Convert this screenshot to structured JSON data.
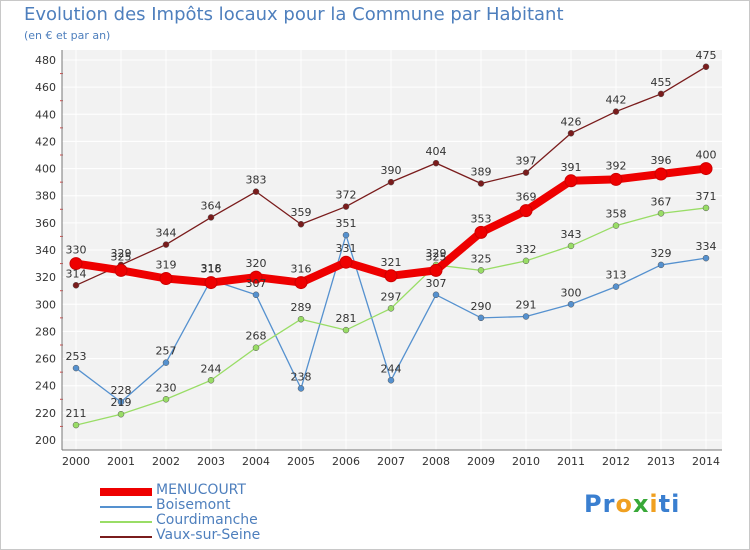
{
  "page": {
    "title": "Evolution des Impôts locaux pour la Commune par Habitant",
    "subtitle": "(en € et par an)",
    "logo": {
      "parts": [
        "Pr",
        "o",
        "x",
        "i",
        "ti"
      ],
      "colors": [
        "#3a7fd0",
        "#f0a020",
        "#38a838",
        "#f0a020",
        "#3a7fd0"
      ]
    }
  },
  "chart_data": {
    "type": "line",
    "title": "Evolution des Impôts locaux pour la Commune par Habitant",
    "subtitle": "(en € et par an)",
    "x": [
      2000,
      2001,
      2002,
      2003,
      2004,
      2005,
      2006,
      2007,
      2008,
      2009,
      2010,
      2011,
      2012,
      2013,
      2014
    ],
    "ylim": [
      200,
      480
    ],
    "yticks": [
      200,
      220,
      240,
      260,
      280,
      300,
      320,
      340,
      360,
      380,
      400,
      420,
      440,
      460,
      480
    ],
    "grid": true,
    "legend_position": "bottom-left",
    "series": [
      {
        "name": "MENUCOURT",
        "color": "#ee0000",
        "emphasis": true,
        "values": [
          330,
          325,
          319,
          316,
          320,
          316,
          331,
          321,
          325,
          353,
          369,
          391,
          392,
          396,
          400
        ],
        "labels": [
          "330",
          "325",
          "319",
          "316",
          "320",
          "316",
          "331",
          "321",
          "325",
          "353",
          "369",
          "391",
          "392",
          "396",
          "400"
        ]
      },
      {
        "name": "Boisemont",
        "color": "#5591cf",
        "emphasis": false,
        "values": [
          253,
          228,
          257,
          318,
          307,
          238,
          351,
          244,
          307,
          290,
          291,
          300,
          313,
          329,
          334
        ],
        "labels": [
          "253",
          "228",
          "257",
          "318",
          "307",
          "238",
          "351",
          "244",
          "307",
          "290",
          "291",
          "300",
          "313",
          "329",
          "334"
        ]
      },
      {
        "name": "Courdimanche",
        "color": "#99dd66",
        "emphasis": false,
        "values": [
          211,
          219,
          230,
          244,
          268,
          289,
          281,
          297,
          329,
          325,
          332,
          343,
          358,
          367,
          371
        ],
        "labels": [
          "211",
          "219",
          "230",
          "244",
          "268",
          "289",
          "281",
          "297",
          "329",
          "325",
          "332",
          "343",
          "358",
          "367",
          "371"
        ]
      },
      {
        "name": "Vaux-sur-Seine",
        "color": "#7a1c1c",
        "emphasis": false,
        "values": [
          314,
          329,
          344,
          364,
          383,
          359,
          372,
          390,
          404,
          389,
          397,
          426,
          442,
          455,
          475
        ],
        "labels": [
          "314",
          "329",
          "344",
          "364",
          "383",
          "359",
          "372",
          "390",
          "404",
          "389",
          "397",
          "426",
          "442",
          "455",
          "475"
        ]
      }
    ]
  }
}
